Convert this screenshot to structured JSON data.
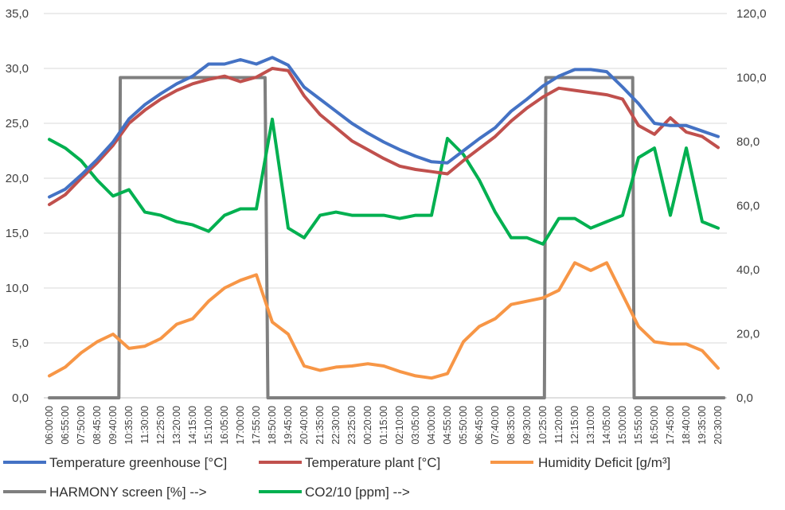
{
  "chart_data": {
    "type": "line",
    "title": "",
    "xlabel": "",
    "ylabel": "",
    "y2label": "",
    "ylim": [
      0,
      35
    ],
    "y2lim": [
      0,
      120
    ],
    "yticks": [
      "0,0",
      "5,0",
      "10,0",
      "15,0",
      "20,0",
      "25,0",
      "30,0",
      "35,0"
    ],
    "y2ticks": [
      "0,0",
      "20,0",
      "40,0",
      "60,0",
      "80,0",
      "100,0",
      "120,0"
    ],
    "grid": true,
    "legend_position": "bottom",
    "x": [
      "06:00:00",
      "06:55:00",
      "07:50:00",
      "08:45:00",
      "09:40:00",
      "10:35:00",
      "11:30:00",
      "12:25:00",
      "13:20:00",
      "14:15:00",
      "15:10:00",
      "16:05:00",
      "17:00:00",
      "17:55:00",
      "18:50:00",
      "19:45:00",
      "20:40:00",
      "21:35:00",
      "22:30:00",
      "23:25:00",
      "00:20:00",
      "01:15:00",
      "02:10:00",
      "03:05:00",
      "04:00:00",
      "04:55:00",
      "05:50:00",
      "06:45:00",
      "07:40:00",
      "08:35:00",
      "09:30:00",
      "10:25:00",
      "11:20:00",
      "12:15:00",
      "13:10:00",
      "14:05:00",
      "15:00:00",
      "15:55:00",
      "16:50:00",
      "17:45:00",
      "18:40:00",
      "19:35:00",
      "20:30:00"
    ],
    "series": [
      {
        "name": "Temperature greenhouse [°C]",
        "axis": "left",
        "color": "#4472C4",
        "values": [
          18.3,
          19.0,
          20.3,
          21.7,
          23.3,
          25.4,
          26.7,
          27.7,
          28.6,
          29.3,
          30.4,
          30.4,
          30.8,
          30.4,
          31.0,
          30.3,
          28.3,
          27.2,
          26.1,
          25.0,
          24.1,
          23.3,
          22.6,
          22.0,
          21.5,
          21.4,
          22.5,
          23.6,
          24.6,
          26.1,
          27.2,
          28.4,
          29.3,
          29.9,
          29.9,
          29.7,
          28.3,
          26.8,
          25.0,
          24.8,
          24.8,
          24.3,
          23.8
        ]
      },
      {
        "name": "Temperature plant [°C]",
        "axis": "left",
        "color": "#C0504D",
        "values": [
          17.6,
          18.5,
          20.0,
          21.4,
          23.0,
          25.0,
          26.2,
          27.2,
          28.0,
          28.6,
          29.0,
          29.3,
          28.8,
          29.2,
          30.0,
          29.8,
          27.5,
          25.8,
          24.6,
          23.4,
          22.6,
          21.8,
          21.1,
          20.8,
          20.6,
          20.4,
          21.6,
          22.7,
          23.8,
          25.2,
          26.4,
          27.4,
          28.2,
          28.0,
          27.8,
          27.6,
          27.2,
          24.8,
          24.0,
          25.5,
          24.2,
          23.8,
          22.8
        ]
      },
      {
        "name": "Humidity Deficit [g/m³]",
        "axis": "left",
        "color": "#F79646",
        "values": [
          2.0,
          2.8,
          4.1,
          5.1,
          5.8,
          4.5,
          4.7,
          5.4,
          6.7,
          7.2,
          8.8,
          10.0,
          10.7,
          11.2,
          6.9,
          5.8,
          2.9,
          2.5,
          2.8,
          2.9,
          3.1,
          2.9,
          2.4,
          2.0,
          1.8,
          2.2,
          5.1,
          6.5,
          7.2,
          8.5,
          8.8,
          9.1,
          9.8,
          12.3,
          11.6,
          12.3,
          9.4,
          6.5,
          5.1,
          4.9,
          4.9,
          4.3,
          2.7
        ]
      },
      {
        "name": "HARMONY screen [%] -->",
        "axis": "right",
        "color": "#7F7F7F",
        "steps": [
          [
            "06:00",
            0
          ],
          [
            "10:00",
            0
          ],
          [
            "10:05",
            100
          ],
          [
            "18:25",
            100
          ],
          [
            "18:35",
            0
          ],
          [
            "10:30",
            0
          ],
          [
            "10:35",
            100
          ],
          [
            "15:35",
            100
          ],
          [
            "15:40",
            0
          ],
          [
            "20:50",
            0
          ]
        ]
      },
      {
        "name": "CO2/10 [ppm] -->",
        "axis": "right",
        "color": "#00B050",
        "values": [
          80.7,
          78,
          74,
          68,
          63,
          65,
          58,
          57,
          55,
          54,
          52,
          57,
          59,
          59,
          87,
          53,
          50,
          57,
          58,
          57,
          57,
          57,
          56,
          57,
          57,
          81,
          76,
          68,
          58,
          50,
          50,
          48,
          56,
          56,
          53,
          55,
          57,
          75,
          78,
          57,
          78,
          55,
          53
        ]
      }
    ]
  }
}
